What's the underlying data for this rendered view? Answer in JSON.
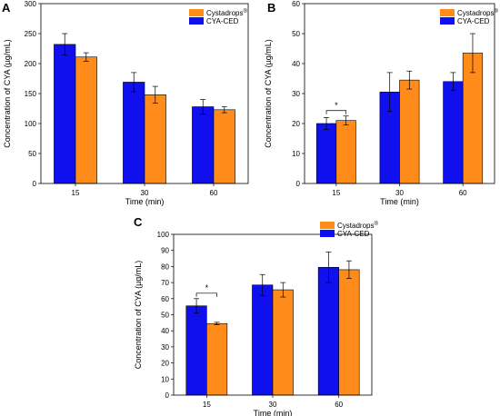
{
  "chart_data": [
    {
      "type": "bar",
      "panel": "A",
      "categories": [
        "15",
        "30",
        "60"
      ],
      "xlabel": "Time (min)",
      "ylabel": "Concentration of CYA (µg/mL)",
      "ylim": [
        0,
        300
      ],
      "yticks": [
        0,
        50,
        100,
        150,
        200,
        250,
        300
      ],
      "series": [
        {
          "name": "CYA-CED",
          "color": "#1010ee",
          "values": [
            232,
            169,
            128
          ],
          "errors": [
            18,
            16,
            12
          ]
        },
        {
          "name": "Cystadrops",
          "name_sup": "®",
          "color": "#ff8c1a",
          "values": [
            211,
            148,
            123
          ],
          "errors": [
            7,
            14,
            5
          ]
        }
      ],
      "legend": "top-right",
      "significance": []
    },
    {
      "type": "bar",
      "panel": "B",
      "categories": [
        "15",
        "30",
        "60"
      ],
      "xlabel": "Time (min)",
      "ylabel": "Concentration of CYA (µg/mL)",
      "ylim": [
        0,
        60
      ],
      "yticks": [
        0,
        10,
        20,
        30,
        40,
        50,
        60
      ],
      "series": [
        {
          "name": "CYA-CED",
          "color": "#1010ee",
          "values": [
            20,
            30.5,
            34
          ],
          "errors": [
            2,
            6.5,
            3
          ]
        },
        {
          "name": "Cystadrops",
          "name_sup": "®",
          "color": "#ff8c1a",
          "values": [
            21,
            34.5,
            43.5
          ],
          "errors": [
            1.5,
            3,
            6.5
          ]
        }
      ],
      "legend": "top-right",
      "significance": [
        {
          "category": "15",
          "label": "*"
        }
      ]
    },
    {
      "type": "bar",
      "panel": "C",
      "categories": [
        "15",
        "30",
        "60"
      ],
      "xlabel": "Time (min)",
      "ylabel": "Concentration of CYA (µg/mL)",
      "ylim": [
        0,
        100
      ],
      "yticks": [
        0,
        10,
        20,
        30,
        40,
        50,
        60,
        70,
        80,
        90,
        100
      ],
      "series": [
        {
          "name": "CYA-CED",
          "color": "#1010ee",
          "values": [
            55.5,
            68.5,
            79.5
          ],
          "errors": [
            4.5,
            6.5,
            9.5
          ]
        },
        {
          "name": "Cystadrops",
          "name_sup": "®",
          "color": "#ff8c1a",
          "values": [
            44.5,
            65.5,
            78
          ],
          "errors": [
            0.8,
            4.5,
            5.5
          ]
        }
      ],
      "legend": "top-right",
      "significance": [
        {
          "category": "15",
          "label": "*"
        }
      ]
    }
  ]
}
